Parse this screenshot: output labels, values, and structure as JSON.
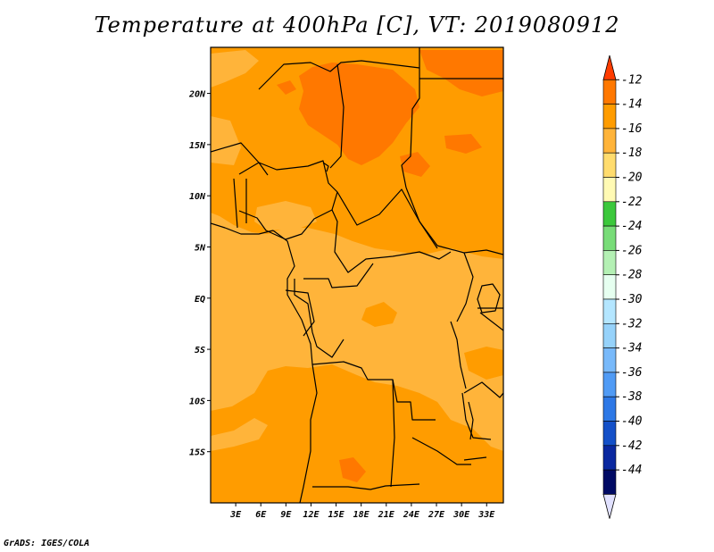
{
  "title": "Temperature at 400hPa [C], VT: 2019080912",
  "credit": "GrADS: IGES/COLA",
  "map": {
    "lon_range": [
      0,
      35
    ],
    "lat_range": [
      -20,
      24.5
    ],
    "lon_ticks": [
      {
        "value": 3,
        "label": "3E"
      },
      {
        "value": 6,
        "label": "6E"
      },
      {
        "value": 9,
        "label": "9E"
      },
      {
        "value": 12,
        "label": "12E"
      },
      {
        "value": 15,
        "label": "15E"
      },
      {
        "value": 18,
        "label": "18E"
      },
      {
        "value": 21,
        "label": "21E"
      },
      {
        "value": 24,
        "label": "24E"
      },
      {
        "value": 27,
        "label": "27E"
      },
      {
        "value": 30,
        "label": "30E"
      },
      {
        "value": 33,
        "label": "33E"
      }
    ],
    "lat_ticks": [
      {
        "value": 20,
        "label": "20N"
      },
      {
        "value": 15,
        "label": "15N"
      },
      {
        "value": 10,
        "label": "10N"
      },
      {
        "value": 5,
        "label": "5N"
      },
      {
        "value": 0,
        "label": "EQ"
      },
      {
        "value": -5,
        "label": "5S"
      },
      {
        "value": -10,
        "label": "10S"
      },
      {
        "value": -15,
        "label": "15S"
      }
    ]
  },
  "colorbar": {
    "labels": [
      "-12",
      "-14",
      "-16",
      "-18",
      "-20",
      "-22",
      "-24",
      "-26",
      "-28",
      "-30",
      "-32",
      "-34",
      "-36",
      "-38",
      "-40",
      "-42",
      "-44"
    ],
    "colors": [
      "#ff3c00",
      "#ff7800",
      "#ff9c00",
      "#ffb43a",
      "#ffdc6e",
      "#fffab4",
      "#3cc83c",
      "#78dc78",
      "#b4f0b4",
      "#e6fff0",
      "#b4e6ff",
      "#96d2fa",
      "#78b9fa",
      "#509bf5",
      "#2d78e6",
      "#1450c8",
      "#0a28a0",
      "#000a64",
      "#e1e1ff"
    ]
  },
  "colors": {
    "t_minus_12_to_14": "#ff7800",
    "t_minus_14_to_16": "#ff9c00",
    "t_minus_16_to_18": "#ffb43a",
    "border": "#000000"
  }
}
